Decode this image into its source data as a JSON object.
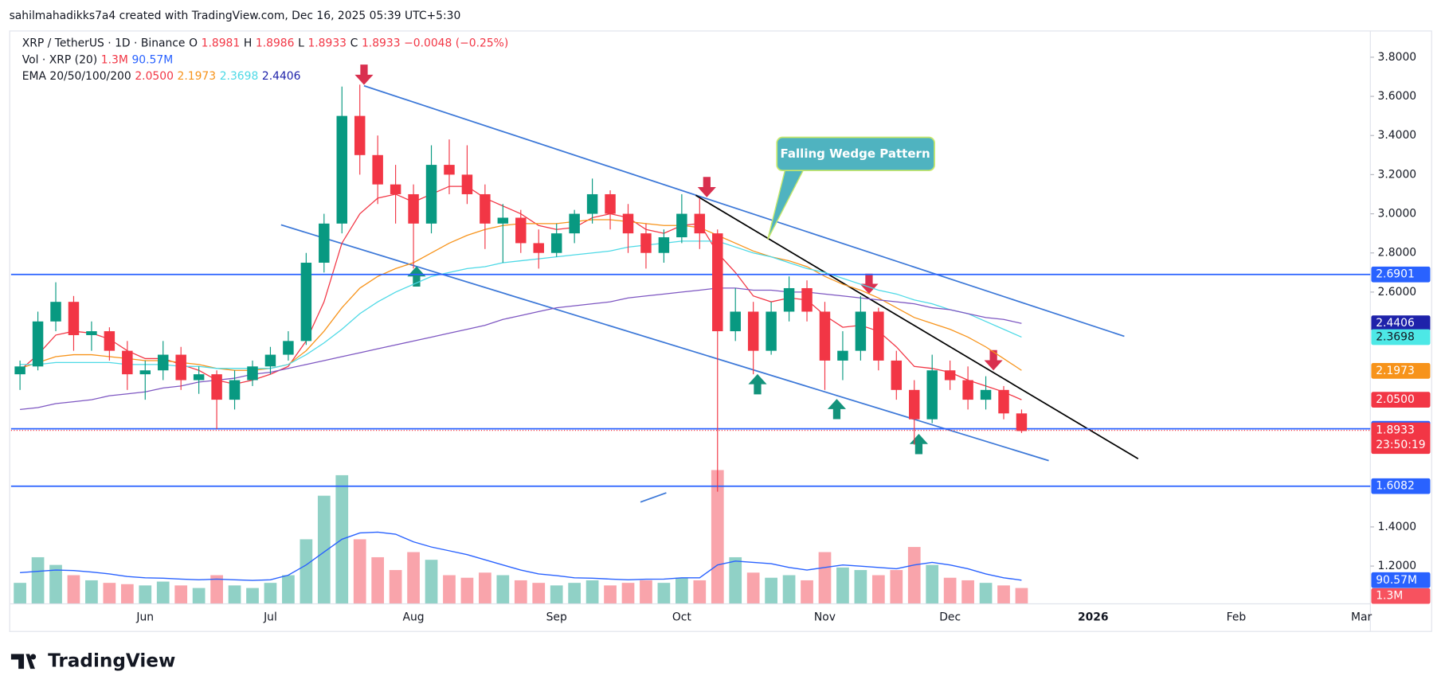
{
  "chart_data": {
    "type": "candlestick",
    "credit": "sahilmahadikks7a4 created with TradingView.com, Dec 16, 2025 05:39 UTC+5:30",
    "symbol": "XRP / TetherUS · 1D · Binance",
    "ohlc_labels": [
      "O",
      "H",
      "L",
      "C"
    ],
    "ohlc_values": [
      1.8981,
      1.8986,
      1.8933,
      1.8933
    ],
    "change": "−0.0048 (−0.25%)",
    "volume_label": "Vol · XRP (20)",
    "volume_values": [
      {
        "value": 1.3,
        "label": "1.3M"
      },
      {
        "value": 90.57,
        "label": "90.57M"
      }
    ],
    "ema_label": "EMA 20/50/100/200",
    "ema_values": [
      {
        "value": 2.05,
        "label": "2.0500"
      },
      2.1973,
      2.3698,
      2.4406
    ],
    "annotation": "Falling Wedge Pattern",
    "footer": "TradingView",
    "categories": [
      null,
      null,
      null,
      null,
      null,
      null,
      null,
      "Jun",
      null,
      null,
      null,
      null,
      null,
      null,
      "Jul",
      null,
      null,
      null,
      null,
      null,
      null,
      null,
      "Aug",
      null,
      null,
      null,
      null,
      null,
      null,
      null,
      "Sep",
      null,
      null,
      null,
      null,
      null,
      null,
      "Oct",
      null,
      null,
      null,
      null,
      null,
      null,
      null,
      "Nov",
      null,
      null,
      null,
      null,
      null,
      null,
      "Dec",
      null,
      null,
      null,
      null,
      null,
      null,
      null,
      "2026",
      null,
      null,
      null,
      null,
      null,
      null,
      null,
      "Feb",
      null,
      null,
      null,
      null,
      null,
      null,
      "Mar"
    ],
    "open": [
      2.18,
      2.22,
      2.45,
      2.55,
      2.38,
      2.4,
      2.3,
      2.18,
      2.2,
      2.28,
      2.15,
      2.18,
      2.05,
      2.15,
      2.22,
      2.28,
      2.35,
      2.75,
      2.95,
      3.5,
      3.3,
      3.15,
      3.1,
      2.95,
      3.25,
      3.2,
      3.1,
      2.95,
      2.98,
      2.85,
      2.8,
      2.9,
      3,
      3.1,
      3,
      2.9,
      2.8,
      2.88,
      3,
      2.9,
      2.4,
      2.5,
      2.3,
      2.5,
      2.62,
      2.5,
      2.25,
      2.3,
      2.5,
      2.25,
      2.1,
      1.95,
      2.2,
      2.15,
      2.05,
      2.1,
      1.98,
      null,
      null,
      null,
      null,
      null,
      null,
      null,
      null,
      null,
      null,
      null,
      null,
      null,
      null,
      null,
      null,
      null,
      null,
      null
    ],
    "high": [
      2.25,
      2.5,
      2.65,
      2.58,
      2.45,
      2.42,
      2.35,
      2.25,
      2.35,
      2.32,
      2.22,
      2.2,
      2.2,
      2.25,
      2.32,
      2.4,
      2.8,
      3,
      3.65,
      3.66,
      3.4,
      3.25,
      3.15,
      3.35,
      3.38,
      3.35,
      3.15,
      3.05,
      3.02,
      2.92,
      2.95,
      3.02,
      3.18,
      3.12,
      3.05,
      2.95,
      2.92,
      3.1,
      3.08,
      2.92,
      2.62,
      2.55,
      2.55,
      2.68,
      2.66,
      2.55,
      2.4,
      2.58,
      2.52,
      2.3,
      2.15,
      2.28,
      2.25,
      2.22,
      2.17,
      2.12,
      2,
      null,
      null,
      null,
      null,
      null,
      null,
      null,
      null,
      null,
      null,
      null,
      null,
      null,
      null,
      null,
      null,
      null,
      null,
      null
    ],
    "low": [
      2.1,
      2.2,
      2.4,
      2.3,
      2.3,
      2.25,
      2.1,
      2.05,
      2.15,
      2.1,
      2.08,
      1.9,
      2,
      2.12,
      2.18,
      2.25,
      2.33,
      2.7,
      2.9,
      3.2,
      3.05,
      2.95,
      2.72,
      2.9,
      3.1,
      3.05,
      2.82,
      2.75,
      2.8,
      2.72,
      2.78,
      2.85,
      2.95,
      2.92,
      2.8,
      2.72,
      2.75,
      2.85,
      2.82,
      1.58,
      2.35,
      2.18,
      2.28,
      2.45,
      2.45,
      2.1,
      2.15,
      2.25,
      2.2,
      2.05,
      1.82,
      1.93,
      2.1,
      2,
      2,
      1.95,
      1.88,
      null,
      null,
      null,
      null,
      null,
      null,
      null,
      null,
      null,
      null,
      null,
      null,
      null,
      null,
      null,
      null,
      null,
      null,
      null
    ],
    "close": [
      2.22,
      2.45,
      2.55,
      2.38,
      2.4,
      2.3,
      2.18,
      2.2,
      2.28,
      2.15,
      2.18,
      2.05,
      2.15,
      2.22,
      2.28,
      2.35,
      2.75,
      2.95,
      3.5,
      3.3,
      3.15,
      3.1,
      2.95,
      3.25,
      3.2,
      3.1,
      2.95,
      2.98,
      2.85,
      2.8,
      2.9,
      3,
      3.1,
      3,
      2.9,
      2.8,
      2.88,
      3,
      2.9,
      2.4,
      2.5,
      2.3,
      2.5,
      2.62,
      2.5,
      2.25,
      2.3,
      2.5,
      2.25,
      2.1,
      1.95,
      2.2,
      2.15,
      2.05,
      2.1,
      1.98,
      1.89,
      null,
      null,
      null,
      null,
      null,
      null,
      null,
      null,
      null,
      null,
      null,
      null,
      null,
      null,
      null,
      null,
      null,
      null,
      null
    ],
    "up_color": "#089981",
    "down_color": "#f23645",
    "series": [
      {
        "color": "#f23645",
        "values": [
          2.2,
          2.28,
          2.38,
          2.4,
          2.39,
          2.36,
          2.3,
          2.26,
          2.26,
          2.23,
          2.2,
          2.15,
          2.13,
          2.15,
          2.18,
          2.22,
          2.35,
          2.55,
          2.85,
          3,
          3.08,
          3.1,
          3.06,
          3.1,
          3.14,
          3.14,
          3.08,
          3.04,
          3,
          2.94,
          2.92,
          2.93,
          2.98,
          3,
          2.98,
          2.92,
          2.9,
          2.94,
          2.95,
          2.8,
          2.7,
          2.58,
          2.55,
          2.57,
          2.56,
          2.48,
          2.42,
          2.43,
          2.4,
          2.32,
          2.22,
          2.21,
          2.19,
          2.15,
          2.12,
          2.09,
          2.05,
          null,
          null,
          null,
          null,
          null,
          null,
          null,
          null,
          null,
          null,
          null,
          null,
          null,
          null,
          null,
          null,
          null,
          null,
          null
        ]
      },
      {
        "color": "#f7931a",
        "values": [
          2.21,
          2.24,
          2.27,
          2.28,
          2.28,
          2.27,
          2.26,
          2.25,
          2.25,
          2.24,
          2.23,
          2.21,
          2.2,
          2.2,
          2.21,
          2.23,
          2.3,
          2.4,
          2.52,
          2.62,
          2.68,
          2.72,
          2.75,
          2.8,
          2.85,
          2.89,
          2.92,
          2.94,
          2.95,
          2.95,
          2.95,
          2.96,
          2.97,
          2.97,
          2.96,
          2.95,
          2.94,
          2.94,
          2.93,
          2.89,
          2.85,
          2.81,
          2.78,
          2.76,
          2.73,
          2.68,
          2.64,
          2.61,
          2.57,
          2.52,
          2.47,
          2.44,
          2.41,
          2.37,
          2.32,
          2.26,
          2.2,
          null,
          null,
          null,
          null,
          null,
          null,
          null,
          null,
          null,
          null,
          null,
          null,
          null,
          null,
          null,
          null,
          null,
          null,
          null
        ]
      },
      {
        "color": "#4dd9e6",
        "values": [
          2.23,
          2.23,
          2.24,
          2.24,
          2.24,
          2.24,
          2.23,
          2.23,
          2.23,
          2.22,
          2.22,
          2.21,
          2.21,
          2.21,
          2.21,
          2.23,
          2.28,
          2.34,
          2.41,
          2.49,
          2.55,
          2.6,
          2.64,
          2.68,
          2.7,
          2.72,
          2.73,
          2.75,
          2.76,
          2.77,
          2.78,
          2.79,
          2.8,
          2.81,
          2.83,
          2.84,
          2.85,
          2.86,
          2.86,
          2.86,
          2.83,
          2.8,
          2.78,
          2.75,
          2.72,
          2.7,
          2.67,
          2.64,
          2.61,
          2.59,
          2.56,
          2.54,
          2.51,
          2.49,
          2.45,
          2.41,
          2.37,
          null,
          null,
          null,
          null,
          null,
          null,
          null,
          null,
          null,
          null,
          null,
          null,
          null,
          null,
          null,
          null,
          null,
          null,
          null
        ]
      },
      {
        "color": "#1e22aa",
        "line_color": "#7e57c2",
        "values": [
          2,
          2.01,
          2.03,
          2.04,
          2.05,
          2.07,
          2.08,
          2.09,
          2.11,
          2.12,
          2.14,
          2.15,
          2.16,
          2.18,
          2.19,
          2.21,
          2.23,
          2.25,
          2.27,
          2.29,
          2.31,
          2.33,
          2.35,
          2.37,
          2.39,
          2.41,
          2.43,
          2.46,
          2.48,
          2.5,
          2.52,
          2.53,
          2.54,
          2.55,
          2.57,
          2.58,
          2.59,
          2.6,
          2.61,
          2.62,
          2.62,
          2.61,
          2.61,
          2.6,
          2.6,
          2.59,
          2.58,
          2.57,
          2.56,
          2.55,
          2.54,
          2.52,
          2.51,
          2.49,
          2.47,
          2.46,
          2.44,
          null,
          null,
          null,
          null,
          null,
          null,
          null,
          null,
          null,
          null,
          null,
          null,
          null,
          null,
          null,
          null,
          null,
          null,
          null
        ]
      }
    ],
    "volume": {
      "ylim": [
        0,
        600
      ],
      "ma_color": "#2962ff",
      "values": [
        80,
        180,
        150,
        110,
        90,
        80,
        75,
        70,
        85,
        70,
        60,
        110,
        70,
        60,
        80,
        110,
        250,
        420,
        500,
        250,
        180,
        130,
        200,
        170,
        110,
        100,
        120,
        110,
        90,
        80,
        70,
        80,
        90,
        70,
        80,
        90,
        80,
        100,
        90,
        520,
        180,
        120,
        100,
        110,
        90,
        200,
        140,
        130,
        110,
        130,
        220,
        150,
        100,
        90,
        80,
        70,
        60,
        null,
        null,
        null,
        null,
        null,
        null,
        null,
        null,
        null,
        null,
        null,
        null,
        null,
        null,
        null,
        null,
        null,
        null,
        null
      ],
      "ma": [
        120,
        125,
        130,
        128,
        122,
        115,
        105,
        100,
        98,
        95,
        92,
        95,
        92,
        90,
        92,
        110,
        150,
        200,
        250,
        275,
        278,
        270,
        240,
        220,
        205,
        190,
        170,
        150,
        130,
        115,
        108,
        100,
        98,
        95,
        92,
        94,
        95,
        100,
        100,
        150,
        165,
        160,
        155,
        140,
        130,
        140,
        150,
        145,
        140,
        135,
        150,
        160,
        150,
        135,
        115,
        100,
        90.57,
        null,
        null,
        null,
        null,
        null,
        null,
        null,
        null,
        null,
        null,
        null,
        null,
        null,
        null,
        null,
        null,
        null,
        null,
        null
      ]
    },
    "ylim": [
      1.0094,
      3.927
    ],
    "yticks": [
      {
        "value": 3.8,
        "label": "3.8000"
      },
      {
        "value": 3.6,
        "label": "3.6000"
      },
      {
        "value": 3.4,
        "label": "3.4000"
      },
      {
        "value": 3.2,
        "label": "3.2000"
      },
      {
        "value": 3,
        "label": "3.0000"
      },
      {
        "value": 2.8,
        "label": "2.8000"
      },
      {
        "value": 2.6,
        "label": "2.6000"
      },
      {
        "value": 1.4,
        "label": "1.4000"
      },
      {
        "value": 1.2,
        "label": "1.2000"
      }
    ],
    "grid": false,
    "price_tags": [
      {
        "value": 2.6901,
        "color": "#2962ff",
        "line": "solid"
      },
      {
        "value": 2.4406,
        "color": "#1e22aa"
      },
      {
        "value": 2.3698,
        "color": "#4de8e6",
        "text_color": "#131722"
      },
      {
        "value": 2.1973,
        "color": "#f7931a"
      },
      {
        "value": 2.05,
        "label": "2.0500",
        "color": "#f23645"
      },
      {
        "value": 1.9015,
        "color": "#2962ff",
        "line": "solid"
      },
      {
        "value": 1.8933,
        "color": "#f23645",
        "countdown": "23:50:19",
        "line": "dotted"
      },
      {
        "value": 1.6082,
        "color": "#2962ff",
        "line": "solid"
      }
    ]
  }
}
